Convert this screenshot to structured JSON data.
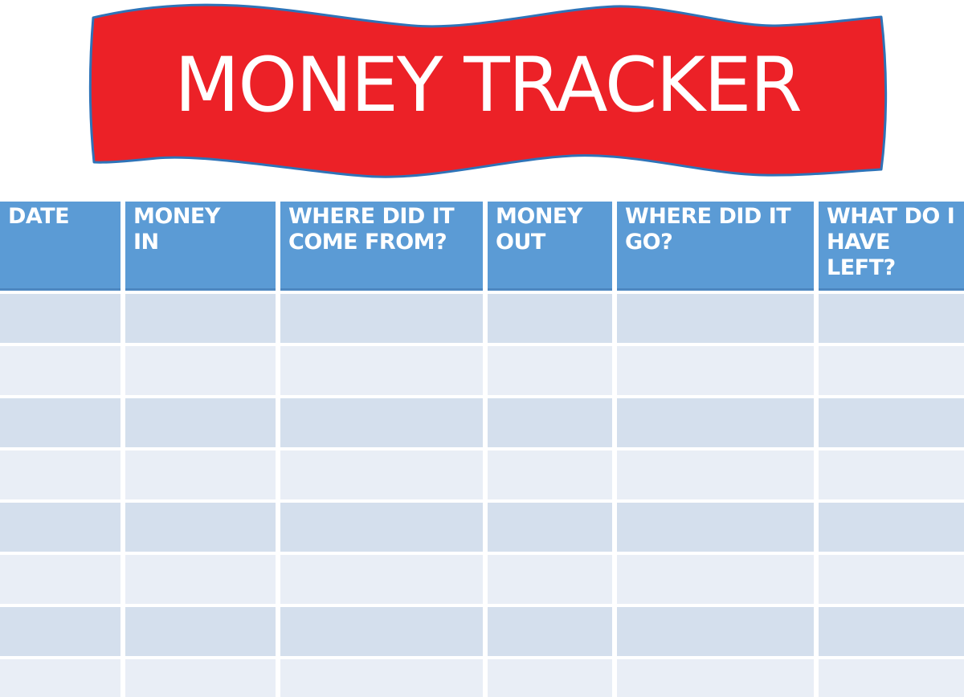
{
  "page": {
    "background_color": "#ffffff"
  },
  "banner": {
    "title": "MONEY TRACKER",
    "fill_color": "#ec2127",
    "outline_color": "#2e73b8",
    "text_color": "#ffffff"
  },
  "table": {
    "header_bg_color": "#5b9bd5",
    "header_edge_color": "#4d87c0",
    "header_text_color": "#ffffff",
    "row_band_dark_color": "#d4dfed",
    "row_band_light_color": "#e9eef6",
    "headers": [
      {
        "id": "date",
        "label": "DATE"
      },
      {
        "id": "money-in",
        "label": "MONEY\nIN"
      },
      {
        "id": "where-come-from",
        "label": "WHERE DID IT\nCOME FROM?"
      },
      {
        "id": "money-out",
        "label": "MONEY\nOUT"
      },
      {
        "id": "where-go",
        "label": "WHERE DID IT\nGO?"
      },
      {
        "id": "what-left",
        "label": "WHAT DO I\nHAVE\nLEFT?"
      }
    ],
    "body_row_count": 8,
    "body_cells_empty_value": ""
  }
}
